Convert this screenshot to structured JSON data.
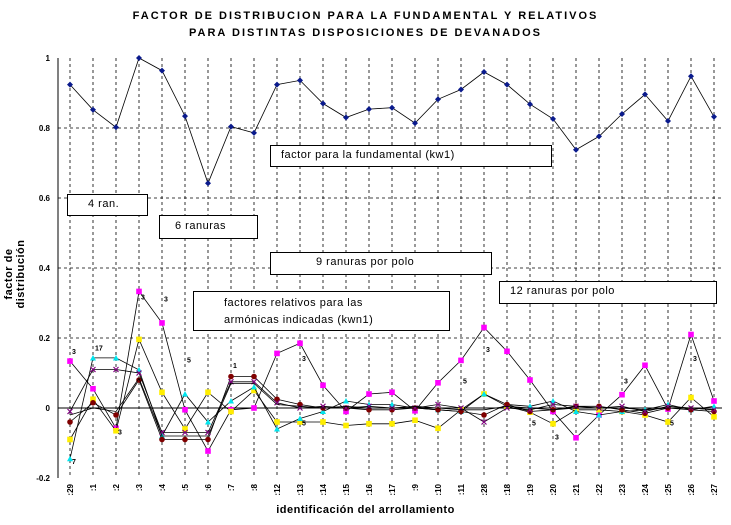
{
  "chart_data": {
    "type": "line",
    "title": "FACTOR DE DISTRIBUCION PARA LA FUNDAMENTAL Y RELATIVOS",
    "subtitle": "PARA DISTINTAS DISPOSICIONES DE DEVANADOS",
    "xlabel": "identificación del arrollamiento",
    "ylabel": "factor de distribución",
    "ylim": [
      -0.2,
      1
    ],
    "yticks": [
      "-0.2",
      "0",
      "0.2",
      "0.4",
      "0.6",
      "0.8",
      "1"
    ],
    "grid": "dashed",
    "categories": [
      ":29",
      ":1",
      ":2",
      ":3",
      ":4",
      ":5",
      ":6",
      ":7",
      ":8",
      ":12",
      ":13",
      ":14",
      ":15",
      ":16",
      ":17",
      ":9",
      ":10",
      ":11",
      ":28",
      ":18",
      ":19",
      ":20",
      ":21",
      ":22",
      ":23",
      ":24",
      ":25",
      ":26",
      ":27"
    ],
    "series": [
      {
        "color": "#0a1a8c",
        "marker": "diamond",
        "values": [
          0.924,
          0.852,
          0.802,
          1.0,
          0.964,
          0.834,
          0.642,
          0.804,
          0.786,
          0.924,
          0.936,
          0.87,
          0.83,
          0.854,
          0.858,
          0.814,
          0.882,
          0.91,
          0.96,
          0.924,
          0.868,
          0.826,
          0.738,
          0.776,
          0.84,
          0.896,
          0.82,
          0.948,
          0.832
        ]
      },
      {
        "color": "#ff00ff",
        "marker": "square",
        "values": [
          0.134,
          0.055,
          -0.058,
          0.333,
          0.243,
          -0.005,
          -0.123,
          -0.005,
          0.0,
          0.156,
          0.185,
          0.065,
          -0.01,
          0.04,
          0.045,
          -0.008,
          0.072,
          0.136,
          0.23,
          0.162,
          0.08,
          -0.01,
          -0.085,
          -0.02,
          0.038,
          0.122,
          -0.003,
          0.21,
          0.02
        ]
      },
      {
        "color": "#ffee00",
        "marker": "square",
        "values": [
          -0.09,
          0.025,
          -0.065,
          0.196,
          0.045,
          -0.06,
          0.045,
          -0.01,
          0.05,
          -0.04,
          -0.04,
          -0.04,
          -0.05,
          -0.045,
          -0.045,
          -0.035,
          -0.058,
          -0.005,
          0.04,
          0.005,
          -0.012,
          -0.045,
          -0.005,
          -0.005,
          -0.01,
          -0.02,
          -0.04,
          0.03,
          -0.025
        ]
      },
      {
        "color": "#00e5ee",
        "marker": "triangle",
        "values": [
          -0.145,
          0.143,
          0.143,
          0.109,
          -0.08,
          0.04,
          -0.04,
          0.02,
          0.06,
          -0.06,
          -0.03,
          -0.01,
          0.02,
          0.01,
          0.01,
          0.0,
          -0.005,
          -0.01,
          0.04,
          0.01,
          0.005,
          0.02,
          -0.01,
          -0.02,
          -0.01,
          -0.005,
          0.01,
          -0.005,
          0.005
        ]
      },
      {
        "color": "#800000",
        "marker": "circle",
        "values": [
          -0.04,
          0.015,
          -0.02,
          0.08,
          -0.09,
          -0.09,
          -0.09,
          0.09,
          0.09,
          0.025,
          0.01,
          0.0,
          0.0,
          -0.005,
          -0.005,
          0.0,
          -0.005,
          -0.01,
          -0.02,
          0.01,
          -0.01,
          -0.005,
          0.005,
          0.005,
          -0.005,
          -0.015,
          0.0,
          -0.005,
          -0.01
        ]
      },
      {
        "color": "#800080",
        "marker": "star",
        "values": [
          -0.01,
          0.11,
          0.11,
          0.1,
          -0.07,
          -0.07,
          -0.07,
          0.075,
          0.075,
          0.015,
          0.0,
          0.005,
          0.0,
          0.005,
          0.0,
          0.0,
          0.01,
          0.0,
          -0.04,
          0.0,
          -0.005,
          0.01,
          0.005,
          0.0,
          0.005,
          -0.01,
          0.005,
          0.0,
          -0.005
        ]
      },
      {
        "color": "#000000",
        "marker": "none",
        "values": [
          -0.02,
          0.0,
          -0.01,
          0.085,
          -0.08,
          -0.08,
          -0.08,
          0.07,
          0.07,
          0.01,
          0.005,
          0.0,
          0.005,
          0.0,
          0.0,
          0.005,
          0.0,
          -0.005,
          -0.005,
          0.005,
          0.0,
          -0.005,
          0.0,
          0.0,
          0.0,
          -0.005,
          0.0,
          0.0,
          -0.005
        ]
      }
    ],
    "annotations": [
      {
        "text": "factor para la fundamental (kw1)"
      },
      {
        "text": "4 ran."
      },
      {
        "text": "6 ranuras"
      },
      {
        "text": "9 ranuras por polo"
      },
      {
        "text": "12 ranuras por polo"
      },
      {
        "text": "factores relativos para las"
      },
      {
        "text": "armónicas indicadas (kwn1)"
      }
    ],
    "point_labels": [
      {
        "text": "3",
        "cat": 0,
        "y": 0.155
      },
      {
        "text": "7",
        "cat": 0,
        "y": -0.16
      },
      {
        "text": "17",
        "cat": 1,
        "y": 0.165
      },
      {
        "text": "3",
        "cat": 2,
        "y": -0.075
      },
      {
        "text": "3",
        "cat": 3,
        "y": 0.31
      },
      {
        "text": "3",
        "cat": 4,
        "y": 0.305
      },
      {
        "text": "5",
        "cat": 5,
        "y": 0.13
      },
      {
        "text": "1",
        "cat": 7,
        "y": 0.115
      },
      {
        "text": "3",
        "cat": 10,
        "y": 0.135
      },
      {
        "text": "5",
        "cat": 10,
        "y": -0.05
      },
      {
        "text": "3",
        "cat": 18,
        "y": 0.16
      },
      {
        "text": "5",
        "cat": 17,
        "y": 0.07
      },
      {
        "text": "5",
        "cat": 20,
        "y": -0.05
      },
      {
        "text": "3",
        "cat": 21,
        "y": -0.09
      },
      {
        "text": "3",
        "cat": 24,
        "y": 0.07
      },
      {
        "text": "5",
        "cat": 26,
        "y": -0.05
      },
      {
        "text": "3",
        "cat": 27,
        "y": 0.135
      }
    ]
  }
}
